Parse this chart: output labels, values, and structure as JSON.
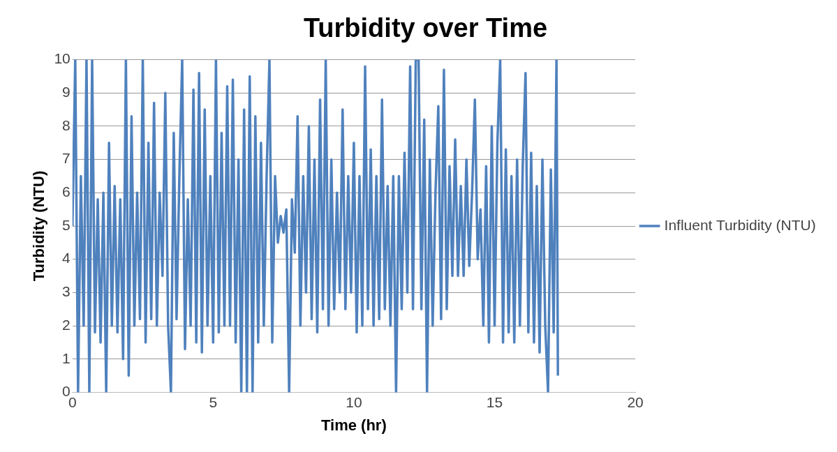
{
  "chart_data": {
    "type": "line",
    "title": "Turbidity over Time",
    "xlabel": "Time (hr)",
    "ylabel": "Turbidity (NTU)",
    "x": [
      0,
      0.1,
      0.2,
      0.3,
      0.4,
      0.5,
      0.6,
      0.7,
      0.8,
      0.9,
      1.0,
      1.1,
      1.2,
      1.3,
      1.4,
      1.5,
      1.6,
      1.7,
      1.8,
      1.9,
      2.0,
      2.1,
      2.2,
      2.3,
      2.4,
      2.5,
      2.6,
      2.7,
      2.8,
      2.9,
      3.0,
      3.1,
      3.2,
      3.3,
      3.4,
      3.5,
      3.6,
      3.7,
      3.8,
      3.9,
      4.0,
      4.1,
      4.2,
      4.3,
      4.4,
      4.5,
      4.6,
      4.7,
      4.8,
      4.9,
      5.0,
      5.1,
      5.2,
      5.3,
      5.4,
      5.5,
      5.6,
      5.7,
      5.8,
      5.9,
      6.0,
      6.1,
      6.2,
      6.3,
      6.4,
      6.5,
      6.6,
      6.7,
      6.8,
      6.9,
      7.0,
      7.1,
      7.2,
      7.3,
      7.4,
      7.5,
      7.6,
      7.7,
      7.8,
      7.9,
      8.0,
      8.1,
      8.2,
      8.3,
      8.4,
      8.5,
      8.6,
      8.7,
      8.8,
      8.9,
      9.0,
      9.1,
      9.2,
      9.3,
      9.4,
      9.5,
      9.6,
      9.7,
      9.8,
      9.9,
      10.0,
      10.1,
      10.2,
      10.3,
      10.4,
      10.5,
      10.6,
      10.7,
      10.8,
      10.9,
      11.0,
      11.1,
      11.2,
      11.3,
      11.4,
      11.5,
      11.6,
      11.7,
      11.8,
      11.9,
      12.0,
      12.1,
      12.2,
      12.3,
      12.4,
      12.5,
      12.6,
      12.7,
      12.8,
      12.9,
      13.0,
      13.1,
      13.2,
      13.3,
      13.4,
      13.5,
      13.6,
      13.7,
      13.8,
      13.9,
      14.0,
      14.1,
      14.2,
      14.3,
      14.4,
      14.5,
      14.6,
      14.7,
      14.8,
      14.9,
      15.0,
      15.1,
      15.2,
      15.3,
      15.4,
      15.5,
      15.6,
      15.7,
      15.8,
      15.9,
      16.0,
      16.1,
      16.2,
      16.3,
      16.4,
      16.5,
      16.6,
      16.7,
      16.8,
      16.9,
      17.0,
      17.1,
      17.2,
      17.25
    ],
    "series": [
      {
        "name": "Influent Turbidity (NTU)",
        "color": "#4f81bd",
        "values": [
          5,
          10,
          0,
          6.5,
          2,
          10,
          0,
          10,
          1.8,
          5.8,
          1.5,
          6,
          0,
          7.5,
          2,
          6.2,
          1.8,
          5.8,
          1,
          10,
          0.5,
          8.3,
          2,
          6,
          2.2,
          10,
          1.5,
          7.5,
          2.2,
          8.7,
          2,
          6,
          3.5,
          9,
          2,
          0,
          7.8,
          2.2,
          6.5,
          10,
          1.3,
          5.8,
          2,
          9.1,
          1.5,
          9.6,
          1.2,
          8.5,
          2,
          6.5,
          1.5,
          10,
          1.8,
          7.8,
          2,
          9.2,
          2,
          9.4,
          1.5,
          7,
          0,
          8.5,
          0,
          9.5,
          0,
          8.3,
          1.5,
          7.5,
          2,
          6.5,
          10,
          1.5,
          6.5,
          4.5,
          5.3,
          4.8,
          5.5,
          0,
          5.8,
          4.2,
          8.3,
          2,
          6.5,
          3,
          8,
          2.2,
          7,
          1.8,
          8.8,
          2.5,
          10,
          2,
          7,
          2.5,
          6,
          3,
          8.5,
          2.5,
          6.5,
          3,
          7.5,
          1.8,
          6.5,
          2,
          9.8,
          2.5,
          7.3,
          2,
          6.5,
          2.2,
          8.8,
          2.5,
          6.2,
          2,
          6.5,
          0,
          6.5,
          2.5,
          7.2,
          3,
          9.8,
          2.5,
          10,
          10,
          2.5,
          8.2,
          0,
          7,
          2,
          6,
          8.6,
          2.2,
          9.7,
          2.5,
          6.8,
          3.5,
          7.6,
          3.5,
          6.2,
          3.5,
          7,
          3.8,
          6,
          8.8,
          4,
          5.5,
          2,
          6.8,
          1.5,
          8,
          2,
          7.5,
          10,
          1.5,
          7.3,
          1.8,
          6.5,
          1.5,
          7,
          2,
          6.8,
          9.6,
          1.8,
          7.2,
          1.5,
          6.2,
          1.2,
          7,
          2,
          0,
          6.7,
          1.8,
          10,
          0.5
        ]
      }
    ],
    "xlim": [
      0,
      20
    ],
    "xticks": [
      0,
      5,
      10,
      15,
      20
    ],
    "ylim": [
      0,
      10
    ],
    "yticks": [
      0,
      1,
      2,
      3,
      4,
      5,
      6,
      7,
      8,
      9,
      10
    ],
    "grid": "y",
    "legend": "right",
    "marker": "none",
    "line_style": "solid"
  }
}
